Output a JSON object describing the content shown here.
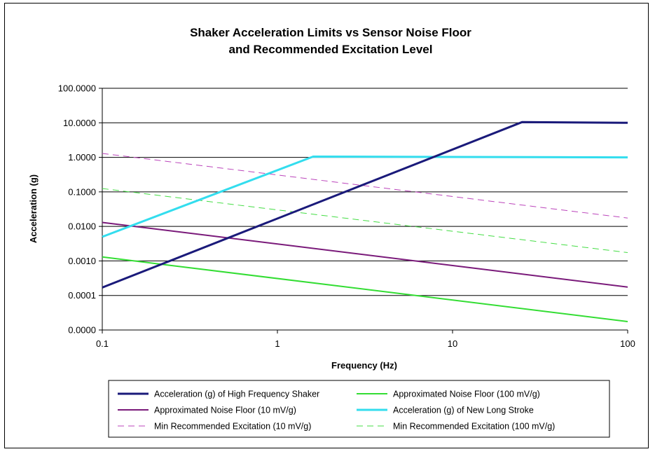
{
  "chart_data": {
    "type": "line",
    "title": [
      "Shaker Acceleration Limits vs Sensor Noise Floor",
      "and Recommended Excitation Level"
    ],
    "xlabel": "Frequency (Hz)",
    "ylabel": "Acceleration (g)",
    "xscale": "log",
    "yscale": "log",
    "xlim": [
      0.1,
      100
    ],
    "ylim": [
      1e-05,
      100
    ],
    "x_ticks": [
      {
        "value": 0.1,
        "label": "0.1"
      },
      {
        "value": 1,
        "label": "1"
      },
      {
        "value": 10,
        "label": "10"
      },
      {
        "value": 100,
        "label": "100"
      }
    ],
    "y_ticks": [
      {
        "value": 100,
        "label": "100.0000"
      },
      {
        "value": 10,
        "label": "10.0000"
      },
      {
        "value": 1,
        "label": "1.0000"
      },
      {
        "value": 0.1,
        "label": "0.1000"
      },
      {
        "value": 0.01,
        "label": "0.0100"
      },
      {
        "value": 0.001,
        "label": "0.0010"
      },
      {
        "value": 0.0001,
        "label": "0.0001"
      },
      {
        "value": 1e-05,
        "label": "0.0000"
      }
    ],
    "grid": "horizontal",
    "legend_position": "bottom",
    "series": [
      {
        "name": "Acceleration (g) of High Frequency Shaker",
        "color": "#1a1a7a",
        "dash": "solid",
        "width": 3,
        "x": [
          0.1,
          25,
          100
        ],
        "y": [
          0.00017,
          10.5,
          10
        ]
      },
      {
        "name": "Approximated Noise Floor (100 mV/g)",
        "color": "#33dd33",
        "dash": "solid",
        "width": 2,
        "x": [
          0.1,
          100
        ],
        "y": [
          0.0013,
          1.75e-05
        ]
      },
      {
        "name": "Approximated Noise Floor (10 mV/g)",
        "color": "#7a1a7a",
        "dash": "solid",
        "width": 2,
        "x": [
          0.1,
          100
        ],
        "y": [
          0.013,
          0.000175
        ]
      },
      {
        "name": "Acceleration (g) of New Long Stroke",
        "color": "#33ddee",
        "dash": "solid",
        "width": 3,
        "x": [
          0.1,
          1.6,
          100
        ],
        "y": [
          0.005,
          1.05,
          1
        ]
      },
      {
        "name": "Min Recommended Excitation (10 mV/g)",
        "color": "#bb44bb",
        "dash": "dashed",
        "width": 1,
        "x": [
          0.1,
          100
        ],
        "y": [
          1.3,
          0.0175
        ]
      },
      {
        "name": "Min Recommended Excitation (100 mV/g)",
        "color": "#44dd44",
        "dash": "dashed",
        "width": 1,
        "x": [
          0.1,
          100
        ],
        "y": [
          0.125,
          0.00175
        ]
      }
    ]
  }
}
